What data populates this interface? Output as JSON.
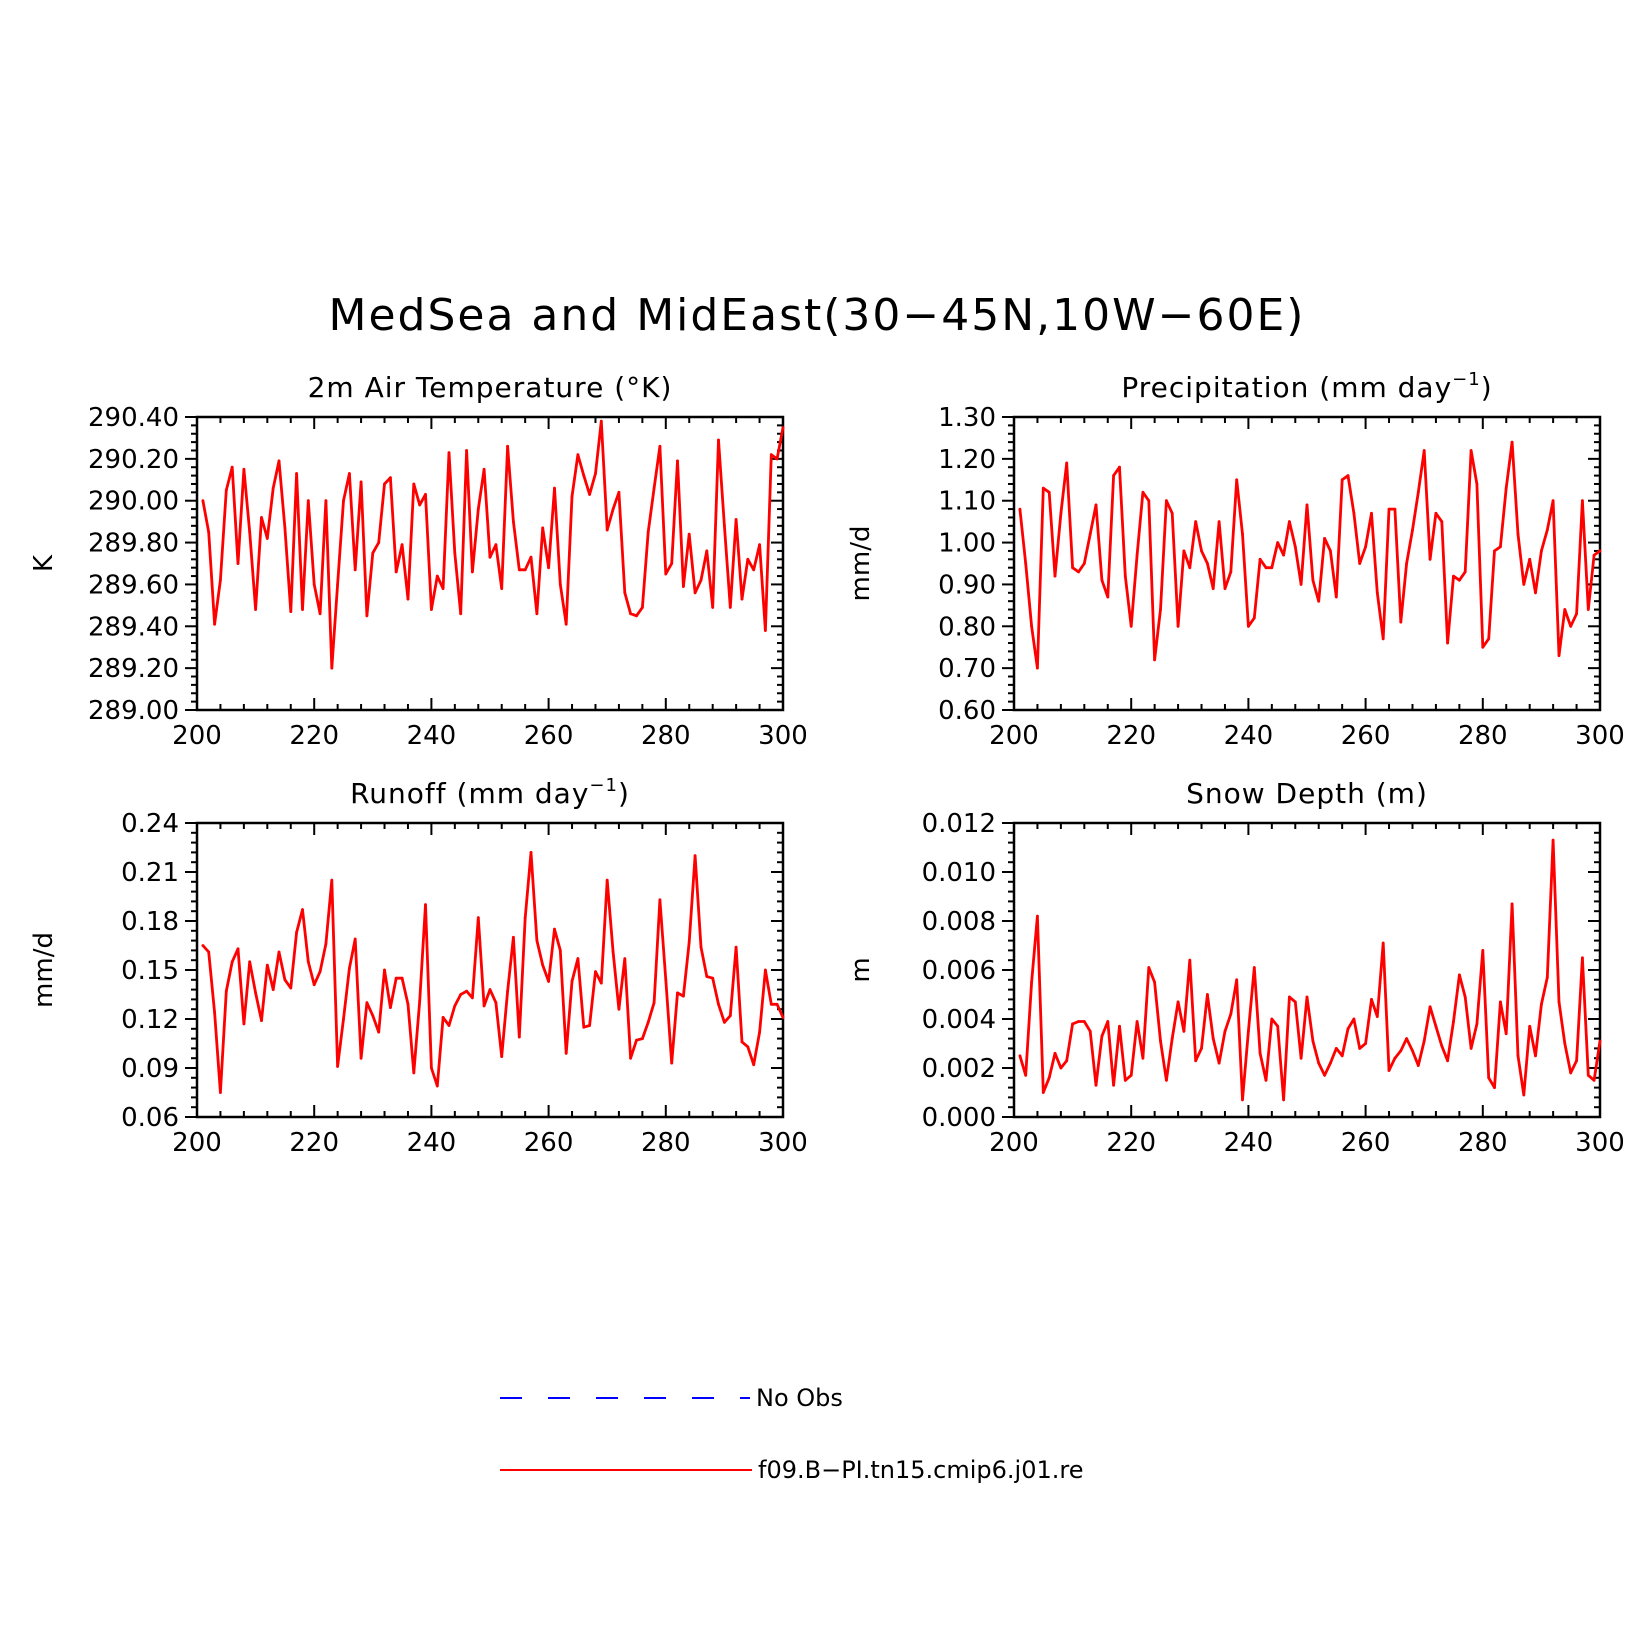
{
  "figure": {
    "title": "MedSea and MidEast(30−45N,10W−60E)",
    "colors": {
      "model": "#ff0000",
      "obs": "#0000ff",
      "axis": "#000000"
    }
  },
  "legend": {
    "obs_label": "No Obs",
    "model_label": "f09.B−PI.tn15.cmip6.j01.re"
  },
  "chart_data": [
    {
      "type": "line",
      "title_main": "2m Air Temperature (°K)",
      "title_sup": "",
      "title_tail": "",
      "ylabel": "K",
      "xlim": [
        200,
        300
      ],
      "ylim": [
        289.0,
        290.4
      ],
      "xticks": [
        "200",
        "220",
        "240",
        "260",
        "280",
        "300"
      ],
      "yticks": [
        "289.00",
        "289.20",
        "289.40",
        "289.60",
        "289.80",
        "290.00",
        "290.20",
        "290.40"
      ],
      "series": [
        {
          "x_start": 201,
          "values": [
            290.0,
            289.85,
            289.41,
            289.62,
            290.05,
            290.16,
            289.7,
            290.15,
            289.85,
            289.48,
            289.92,
            289.82,
            290.06,
            290.19,
            289.87,
            289.47,
            290.13,
            289.48,
            290.0,
            289.6,
            289.46,
            290.0,
            289.2,
            289.6,
            290.0,
            290.13,
            289.67,
            290.09,
            289.45,
            289.75,
            289.8,
            290.08,
            290.11,
            289.66,
            289.79,
            289.53,
            290.08,
            289.98,
            290.03,
            289.48,
            289.64,
            289.58,
            290.23,
            289.75,
            289.46,
            290.24,
            289.66,
            289.96,
            290.15,
            289.73,
            289.79,
            289.58,
            290.26,
            289.9,
            289.67,
            289.67,
            289.73,
            289.46,
            289.87,
            289.68,
            290.06,
            289.6,
            289.41,
            290.02,
            290.22,
            290.12,
            290.03,
            290.13,
            290.38,
            289.86,
            289.96,
            290.04,
            289.56,
            289.46,
            289.45,
            289.49,
            289.85,
            290.06,
            290.26,
            289.65,
            289.7,
            290.19,
            289.59,
            289.84,
            289.56,
            289.62,
            289.76,
            289.49,
            290.29,
            289.88,
            289.49,
            289.91,
            289.53,
            289.72,
            289.67,
            289.79,
            289.38,
            290.22,
            290.2,
            290.35
          ]
        }
      ]
    },
    {
      "type": "line",
      "title_main": "Precipitation (mm day",
      "title_sup": "−1",
      "title_tail": ")",
      "ylabel": "mm/d",
      "xlim": [
        200,
        300
      ],
      "ylim": [
        0.6,
        1.3
      ],
      "xticks": [
        "200",
        "220",
        "240",
        "260",
        "280",
        "300"
      ],
      "yticks": [
        "0.60",
        "0.70",
        "0.80",
        "0.90",
        "1.00",
        "1.10",
        "1.20",
        "1.30"
      ],
      "series": [
        {
          "x_start": 201,
          "values": [
            1.08,
            0.95,
            0.8,
            0.7,
            1.13,
            1.12,
            0.92,
            1.07,
            1.19,
            0.94,
            0.93,
            0.95,
            1.02,
            1.09,
            0.91,
            0.87,
            1.16,
            1.18,
            0.92,
            0.8,
            0.97,
            1.12,
            1.1,
            0.72,
            0.84,
            1.1,
            1.07,
            0.8,
            0.98,
            0.94,
            1.05,
            0.98,
            0.95,
            0.89,
            1.05,
            0.89,
            0.93,
            1.15,
            1.02,
            0.8,
            0.82,
            0.96,
            0.94,
            0.94,
            1.0,
            0.97,
            1.05,
            0.99,
            0.9,
            1.09,
            0.91,
            0.86,
            1.01,
            0.98,
            0.87,
            1.15,
            1.16,
            1.07,
            0.95,
            0.99,
            1.07,
            0.88,
            0.77,
            1.08,
            1.08,
            0.81,
            0.95,
            1.03,
            1.12,
            1.22,
            0.96,
            1.07,
            1.05,
            0.76,
            0.92,
            0.91,
            0.93,
            1.22,
            1.14,
            0.75,
            0.77,
            0.98,
            0.99,
            1.13,
            1.24,
            1.02,
            0.9,
            0.96,
            0.88,
            0.98,
            1.03,
            1.1,
            0.73,
            0.84,
            0.8,
            0.83,
            1.1,
            0.84,
            0.97,
            0.98
          ]
        }
      ]
    },
    {
      "type": "line",
      "title_main": "Runoff (mm day",
      "title_sup": "−1",
      "title_tail": ")",
      "ylabel": "mm/d",
      "xlim": [
        200,
        300
      ],
      "ylim": [
        0.06,
        0.24
      ],
      "xticks": [
        "200",
        "220",
        "240",
        "260",
        "280",
        "300"
      ],
      "yticks": [
        "0.06",
        "0.09",
        "0.12",
        "0.15",
        "0.18",
        "0.21",
        "0.24"
      ],
      "series": [
        {
          "x_start": 201,
          "values": [
            0.165,
            0.161,
            0.124,
            0.075,
            0.137,
            0.155,
            0.163,
            0.117,
            0.155,
            0.136,
            0.119,
            0.153,
            0.138,
            0.161,
            0.144,
            0.139,
            0.173,
            0.187,
            0.155,
            0.141,
            0.149,
            0.166,
            0.205,
            0.091,
            0.12,
            0.151,
            0.169,
            0.096,
            0.13,
            0.122,
            0.112,
            0.15,
            0.127,
            0.145,
            0.145,
            0.129,
            0.087,
            0.131,
            0.19,
            0.09,
            0.079,
            0.121,
            0.116,
            0.128,
            0.135,
            0.137,
            0.133,
            0.182,
            0.128,
            0.138,
            0.13,
            0.097,
            0.137,
            0.17,
            0.109,
            0.182,
            0.222,
            0.168,
            0.153,
            0.143,
            0.175,
            0.162,
            0.099,
            0.143,
            0.157,
            0.115,
            0.116,
            0.149,
            0.142,
            0.205,
            0.161,
            0.126,
            0.157,
            0.096,
            0.107,
            0.108,
            0.118,
            0.13,
            0.193,
            0.144,
            0.093,
            0.136,
            0.134,
            0.167,
            0.22,
            0.164,
            0.146,
            0.145,
            0.129,
            0.118,
            0.122,
            0.164,
            0.106,
            0.103,
            0.092,
            0.112,
            0.15,
            0.129,
            0.129,
            0.121
          ]
        }
      ]
    },
    {
      "type": "line",
      "title_main": "Snow Depth (m)",
      "title_sup": "",
      "title_tail": "",
      "ylabel": "m",
      "xlim": [
        200,
        300
      ],
      "ylim": [
        0.0,
        0.012
      ],
      "xticks": [
        "200",
        "220",
        "240",
        "260",
        "280",
        "300"
      ],
      "yticks": [
        "0.000",
        "0.002",
        "0.004",
        "0.006",
        "0.008",
        "0.010",
        "0.012"
      ],
      "series": [
        {
          "x_start": 201,
          "values": [
            0.0025,
            0.0017,
            0.0055,
            0.0082,
            0.001,
            0.0016,
            0.0026,
            0.002,
            0.0023,
            0.0038,
            0.0039,
            0.0039,
            0.0035,
            0.0013,
            0.0033,
            0.0039,
            0.0013,
            0.0037,
            0.0015,
            0.0017,
            0.0039,
            0.0024,
            0.0061,
            0.0055,
            0.0031,
            0.0015,
            0.0032,
            0.0047,
            0.0035,
            0.0064,
            0.0023,
            0.0028,
            0.005,
            0.0032,
            0.0022,
            0.0035,
            0.0042,
            0.0056,
            0.0007,
            0.0035,
            0.0061,
            0.0026,
            0.0015,
            0.004,
            0.0037,
            0.0007,
            0.0049,
            0.0047,
            0.0024,
            0.0049,
            0.0031,
            0.0022,
            0.0017,
            0.0022,
            0.0028,
            0.0025,
            0.0036,
            0.004,
            0.0028,
            0.003,
            0.0048,
            0.0041,
            0.0071,
            0.0019,
            0.0024,
            0.0027,
            0.0032,
            0.0027,
            0.0021,
            0.0031,
            0.0045,
            0.0037,
            0.0029,
            0.0023,
            0.0039,
            0.0058,
            0.0049,
            0.0028,
            0.0038,
            0.0068,
            0.0016,
            0.0012,
            0.0047,
            0.0034,
            0.0087,
            0.0025,
            0.0009,
            0.0037,
            0.0025,
            0.0046,
            0.0057,
            0.0113,
            0.0047,
            0.003,
            0.0018,
            0.0023,
            0.0065,
            0.0017,
            0.0015,
            0.0031
          ]
        }
      ]
    }
  ]
}
